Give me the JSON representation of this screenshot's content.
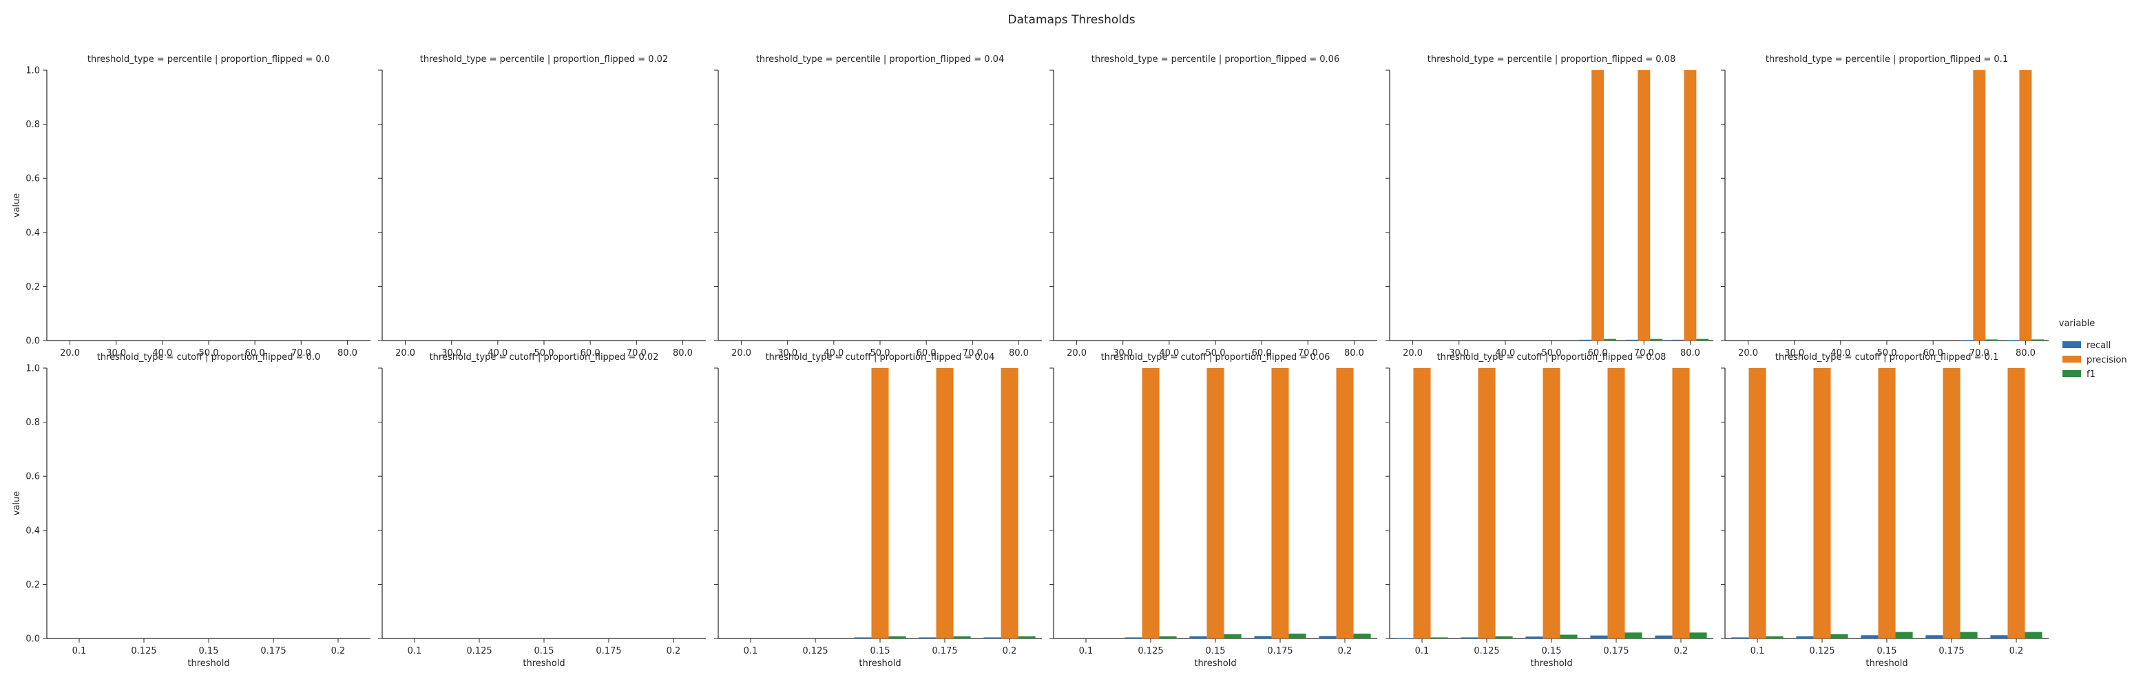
{
  "figure": {
    "title": "Datamaps Thresholds",
    "legend_title": "variable",
    "legend_entries": [
      "recall",
      "precision",
      "f1"
    ],
    "series_colors": {
      "recall": "#2f6fae",
      "precision": "#e67e22",
      "f1": "#2e8b3e"
    },
    "legend_placement": "right-center"
  },
  "chart_data": [
    {
      "type": "bar",
      "title": "threshold_type = percentile | proportion_flipped = 0.0",
      "xlabel": "",
      "ylabel": "value",
      "ylim": [
        0,
        1.0
      ],
      "yticks": [
        "0.0",
        "0.2",
        "0.4",
        "0.6",
        "0.8",
        "1.0"
      ],
      "categories": [
        "20.0",
        "30.0",
        "40.0",
        "50.0",
        "60.0",
        "70.0",
        "80.0"
      ],
      "series": [
        {
          "name": "recall",
          "values": [
            0,
            0,
            0,
            0,
            0,
            0,
            0
          ]
        },
        {
          "name": "precision",
          "values": [
            0,
            0,
            0,
            0,
            0,
            0,
            0
          ]
        },
        {
          "name": "f1",
          "values": [
            0,
            0,
            0,
            0,
            0,
            0,
            0
          ]
        }
      ]
    },
    {
      "type": "bar",
      "title": "threshold_type = percentile | proportion_flipped = 0.02",
      "xlabel": "",
      "ylabel": "",
      "ylim": [
        0,
        1.0
      ],
      "yticks": [],
      "categories": [
        "20.0",
        "30.0",
        "40.0",
        "50.0",
        "60.0",
        "70.0",
        "80.0"
      ],
      "series": [
        {
          "name": "recall",
          "values": [
            0,
            0,
            0,
            0,
            0,
            0,
            0
          ]
        },
        {
          "name": "precision",
          "values": [
            0,
            0,
            0,
            0,
            0,
            0,
            0
          ]
        },
        {
          "name": "f1",
          "values": [
            0,
            0,
            0,
            0,
            0,
            0,
            0
          ]
        }
      ]
    },
    {
      "type": "bar",
      "title": "threshold_type = percentile | proportion_flipped = 0.04",
      "xlabel": "",
      "ylabel": "",
      "ylim": [
        0,
        1.0
      ],
      "yticks": [],
      "categories": [
        "20.0",
        "30.0",
        "40.0",
        "50.0",
        "60.0",
        "70.0",
        "80.0"
      ],
      "series": [
        {
          "name": "recall",
          "values": [
            0,
            0,
            0,
            0,
            0,
            0,
            0
          ]
        },
        {
          "name": "precision",
          "values": [
            0,
            0,
            0,
            0,
            0,
            0,
            0
          ]
        },
        {
          "name": "f1",
          "values": [
            0,
            0,
            0,
            0,
            0,
            0,
            0
          ]
        }
      ]
    },
    {
      "type": "bar",
      "title": "threshold_type = percentile | proportion_flipped = 0.06",
      "xlabel": "",
      "ylabel": "",
      "ylim": [
        0,
        1.0
      ],
      "yticks": [],
      "categories": [
        "20.0",
        "30.0",
        "40.0",
        "50.0",
        "60.0",
        "70.0",
        "80.0"
      ],
      "series": [
        {
          "name": "recall",
          "values": [
            0,
            0,
            0,
            0,
            0,
            0,
            0
          ]
        },
        {
          "name": "precision",
          "values": [
            0,
            0,
            0,
            0,
            0,
            0,
            0
          ]
        },
        {
          "name": "f1",
          "values": [
            0,
            0,
            0,
            0,
            0,
            0,
            0
          ]
        }
      ]
    },
    {
      "type": "bar",
      "title": "threshold_type = percentile | proportion_flipped = 0.08",
      "xlabel": "",
      "ylabel": "",
      "ylim": [
        0,
        1.0
      ],
      "yticks": [],
      "categories": [
        "20.0",
        "30.0",
        "40.0",
        "50.0",
        "60.0",
        "70.0",
        "80.0"
      ],
      "series": [
        {
          "name": "recall",
          "values": [
            0,
            0,
            0,
            0,
            0.003,
            0.003,
            0.003
          ]
        },
        {
          "name": "precision",
          "values": [
            0,
            0,
            0,
            0,
            1.0,
            1.0,
            1.0
          ]
        },
        {
          "name": "f1",
          "values": [
            0,
            0,
            0,
            0,
            0.006,
            0.006,
            0.006
          ]
        }
      ]
    },
    {
      "type": "bar",
      "title": "threshold_type = percentile | proportion_flipped = 0.1",
      "xlabel": "",
      "ylabel": "",
      "ylim": [
        0,
        1.0
      ],
      "yticks": [],
      "categories": [
        "20.0",
        "30.0",
        "40.0",
        "50.0",
        "60.0",
        "70.0",
        "80.0"
      ],
      "series": [
        {
          "name": "recall",
          "values": [
            0,
            0,
            0,
            0,
            0,
            0.002,
            0.002
          ]
        },
        {
          "name": "precision",
          "values": [
            0,
            0,
            0,
            0,
            0,
            1.0,
            1.0
          ]
        },
        {
          "name": "f1",
          "values": [
            0,
            0,
            0,
            0,
            0,
            0.004,
            0.004
          ]
        }
      ]
    },
    {
      "type": "bar",
      "title": "threshold_type = cutoff | proportion_flipped = 0.0",
      "xlabel": "threshold",
      "ylabel": "value",
      "ylim": [
        0,
        1.0
      ],
      "yticks": [
        "0.0",
        "0.2",
        "0.4",
        "0.6",
        "0.8",
        "1.0"
      ],
      "categories": [
        "0.1",
        "0.125",
        "0.15",
        "0.175",
        "0.2"
      ],
      "series": [
        {
          "name": "recall",
          "values": [
            0,
            0,
            0,
            0,
            0
          ]
        },
        {
          "name": "precision",
          "values": [
            0,
            0,
            0,
            0,
            0
          ]
        },
        {
          "name": "f1",
          "values": [
            0,
            0,
            0,
            0,
            0
          ]
        }
      ]
    },
    {
      "type": "bar",
      "title": "threshold_type = cutoff | proportion_flipped = 0.02",
      "xlabel": "threshold",
      "ylabel": "",
      "ylim": [
        0,
        1.0
      ],
      "yticks": [],
      "categories": [
        "0.1",
        "0.125",
        "0.15",
        "0.175",
        "0.2"
      ],
      "series": [
        {
          "name": "recall",
          "values": [
            0,
            0,
            0,
            0,
            0
          ]
        },
        {
          "name": "precision",
          "values": [
            0,
            0,
            0,
            0,
            0
          ]
        },
        {
          "name": "f1",
          "values": [
            0,
            0,
            0,
            0,
            0
          ]
        }
      ]
    },
    {
      "type": "bar",
      "title": "threshold_type = cutoff | proportion_flipped = 0.04",
      "xlabel": "threshold",
      "ylabel": "",
      "ylim": [
        0,
        1.0
      ],
      "yticks": [],
      "categories": [
        "0.1",
        "0.125",
        "0.15",
        "0.175",
        "0.2"
      ],
      "series": [
        {
          "name": "recall",
          "values": [
            0,
            0,
            0.004,
            0.004,
            0.004
          ]
        },
        {
          "name": "precision",
          "values": [
            0,
            0,
            1.0,
            1.0,
            1.0
          ]
        },
        {
          "name": "f1",
          "values": [
            0,
            0,
            0.008,
            0.008,
            0.008
          ]
        }
      ]
    },
    {
      "type": "bar",
      "title": "threshold_type = cutoff | proportion_flipped = 0.06",
      "xlabel": "threshold",
      "ylabel": "",
      "ylim": [
        0,
        1.0
      ],
      "yticks": [],
      "categories": [
        "0.1",
        "0.125",
        "0.15",
        "0.175",
        "0.2"
      ],
      "series": [
        {
          "name": "recall",
          "values": [
            0,
            0.004,
            0.008,
            0.009,
            0.009
          ]
        },
        {
          "name": "precision",
          "values": [
            0,
            1.0,
            1.0,
            1.0,
            1.0
          ]
        },
        {
          "name": "f1",
          "values": [
            0,
            0.008,
            0.016,
            0.018,
            0.018
          ]
        }
      ]
    },
    {
      "type": "bar",
      "title": "threshold_type = cutoff | proportion_flipped = 0.08",
      "xlabel": "threshold",
      "ylabel": "",
      "ylim": [
        0,
        1.0
      ],
      "yticks": [],
      "categories": [
        "0.1",
        "0.125",
        "0.15",
        "0.175",
        "0.2"
      ],
      "series": [
        {
          "name": "recall",
          "values": [
            0.002,
            0.004,
            0.007,
            0.011,
            0.011
          ]
        },
        {
          "name": "precision",
          "values": [
            1.0,
            1.0,
            1.0,
            1.0,
            1.0
          ]
        },
        {
          "name": "f1",
          "values": [
            0.004,
            0.008,
            0.014,
            0.022,
            0.022
          ]
        }
      ]
    },
    {
      "type": "bar",
      "title": "threshold_type = cutoff | proportion_flipped = 0.1",
      "xlabel": "threshold",
      "ylabel": "",
      "ylim": [
        0,
        1.0
      ],
      "yticks": [],
      "categories": [
        "0.1",
        "0.125",
        "0.15",
        "0.175",
        "0.2"
      ],
      "series": [
        {
          "name": "recall",
          "values": [
            0.004,
            0.008,
            0.012,
            0.012,
            0.012
          ]
        },
        {
          "name": "precision",
          "values": [
            1.0,
            1.0,
            1.0,
            1.0,
            1.0
          ]
        },
        {
          "name": "f1",
          "values": [
            0.008,
            0.016,
            0.024,
            0.024,
            0.024
          ]
        }
      ]
    }
  ]
}
